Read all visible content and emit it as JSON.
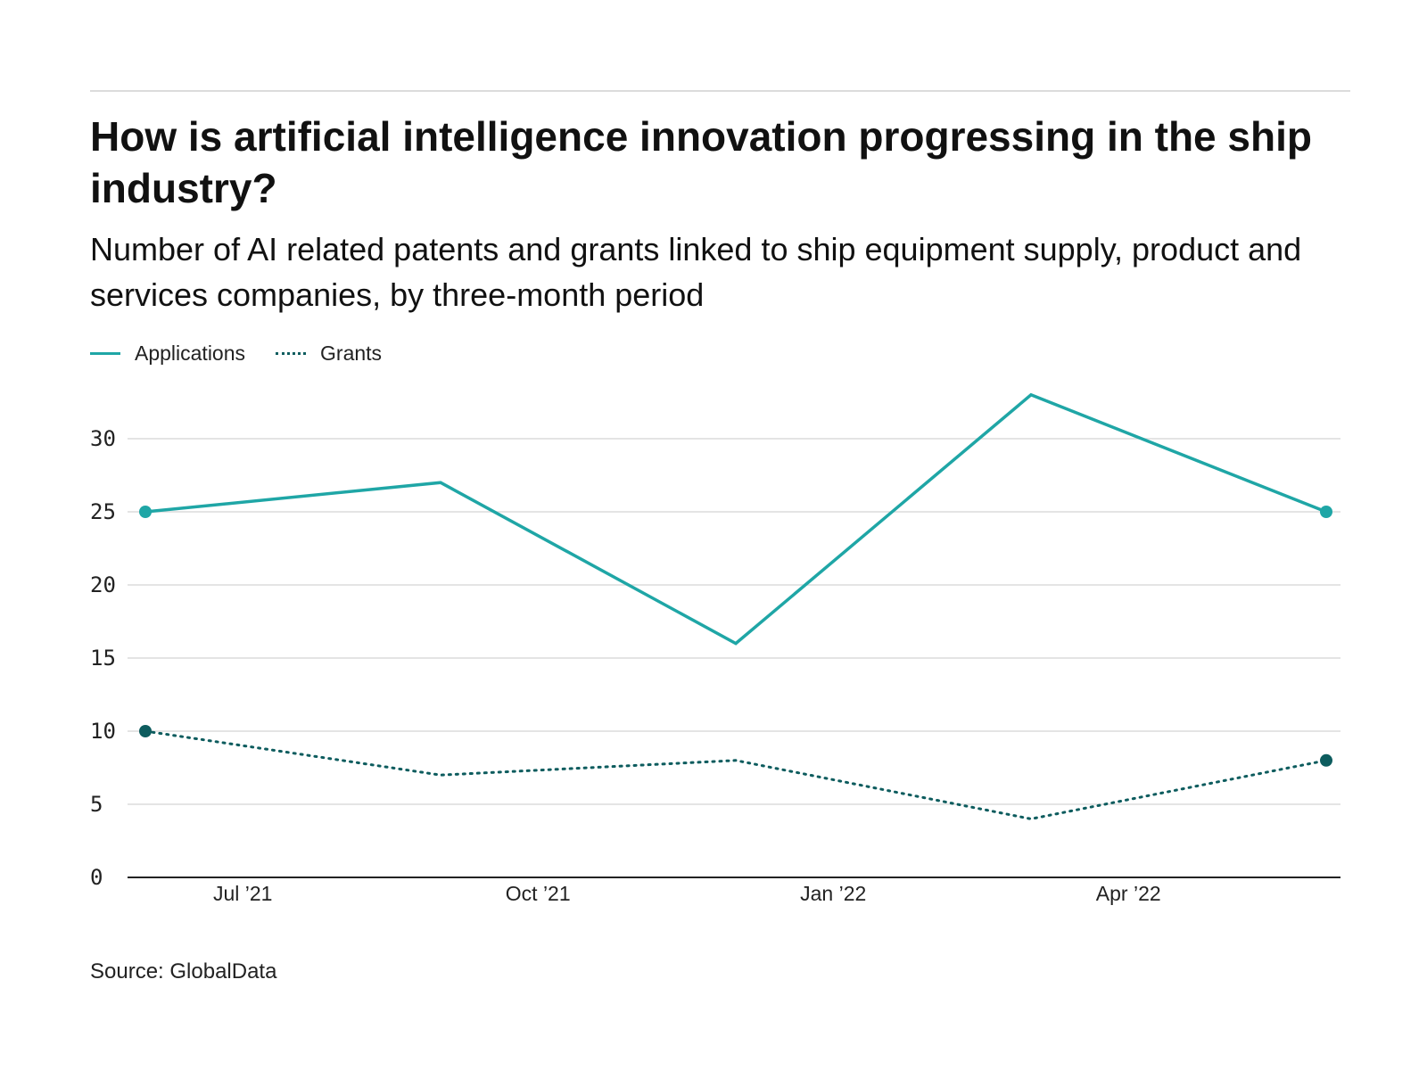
{
  "header": {
    "title": "How is artificial intelligence innovation progressing in the ship industry?",
    "subtitle": "Number of AI related patents and grants linked to ship equipment supply, product and services companies, by three-month period"
  },
  "legend": {
    "applications_label": "Applications",
    "grants_label": "Grants"
  },
  "footer": {
    "source": "Source: GlobalData"
  },
  "colors": {
    "applications": "#1fa6a6",
    "grants": "#0d5c5e",
    "grid": "#dcdcdc",
    "axis": "#222222"
  },
  "chart_data": {
    "type": "line",
    "title": "How is artificial intelligence innovation progressing in the ship industry?",
    "xlabel": "",
    "ylabel": "",
    "ylim": [
      0,
      30
    ],
    "yticks": [
      0,
      5,
      10,
      15,
      20,
      25,
      30
    ],
    "x_tick_labels": [
      "Jul ’21",
      "Oct ’21",
      "Jan ’22",
      "Apr ’22"
    ],
    "x_tick_positions": [
      0.33,
      1.33,
      2.33,
      3.33
    ],
    "x": [
      0,
      1,
      2,
      3,
      4
    ],
    "series": [
      {
        "name": "Applications",
        "values": [
          25,
          27,
          16,
          33,
          25
        ],
        "style": "solid"
      },
      {
        "name": "Grants",
        "values": [
          10,
          7,
          8,
          4,
          8
        ],
        "style": "dotted"
      }
    ],
    "legend": "top-left",
    "grid": true
  }
}
